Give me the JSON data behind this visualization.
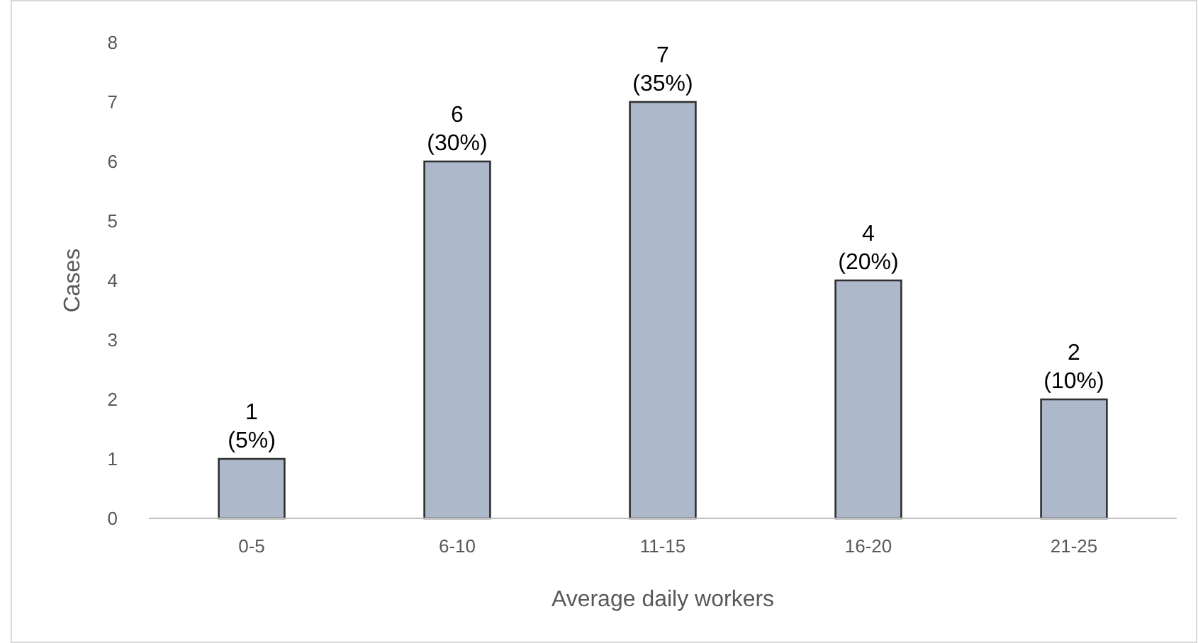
{
  "chart_data": {
    "type": "bar",
    "xlabel": "Average daily workers",
    "ylabel": "Cases",
    "categories": [
      "0-5",
      "6-10",
      "11-15",
      "16-20",
      "21-25"
    ],
    "values": [
      1,
      6,
      7,
      4,
      2
    ],
    "value_labels": [
      "1\n(5%)",
      "6\n(30%)",
      "7\n(35%)",
      "4\n(20%)",
      "2\n(10%)"
    ],
    "color": "#adb9ca",
    "ylim": [
      0,
      8
    ],
    "yticks": [
      0,
      1,
      2,
      3,
      4,
      5,
      6,
      7,
      8
    ],
    "grid": false
  }
}
